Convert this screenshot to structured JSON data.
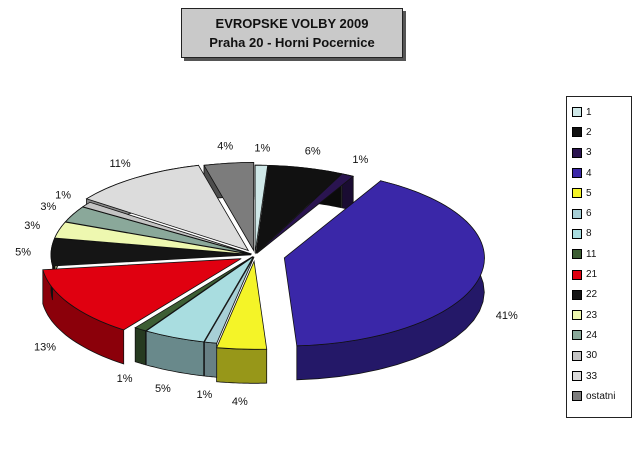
{
  "chart_data": {
    "type": "pie",
    "title": "EVROPSKE VOLBY 2009",
    "subtitle": "Praha 20 - Horni Pocernice",
    "slices": [
      {
        "label": "1",
        "value": 1,
        "pct_label": "1%",
        "color": "#cfe8e8"
      },
      {
        "label": "2",
        "value": 6,
        "pct_label": "6%",
        "color": "#111111"
      },
      {
        "label": "3",
        "value": 1,
        "pct_label": "1%",
        "color": "#2a1450"
      },
      {
        "label": "4",
        "value": 41,
        "pct_label": "41%",
        "color": "#3a27a8"
      },
      {
        "label": "5",
        "value": 4,
        "pct_label": "4%",
        "color": "#f4f428"
      },
      {
        "label": "6",
        "value": 1,
        "pct_label": "1%",
        "color": "#a7cfd6"
      },
      {
        "label": "8",
        "value": 5,
        "pct_label": "5%",
        "color": "#a9dde0"
      },
      {
        "label": "11",
        "value": 1,
        "pct_label": "1%",
        "color": "#3d5e34"
      },
      {
        "label": "21",
        "value": 13,
        "pct_label": "13%",
        "color": "#e00010"
      },
      {
        "label": "22",
        "value": 5,
        "pct_label": "5%",
        "color": "#151515"
      },
      {
        "label": "23",
        "value": 3,
        "pct_label": "3%",
        "color": "#eef8b0"
      },
      {
        "label": "24",
        "value": 3,
        "pct_label": "3%",
        "color": "#8aa89a"
      },
      {
        "label": "30",
        "value": 1,
        "pct_label": "1%",
        "color": "#c4c4c4"
      },
      {
        "label": "33",
        "value": 11,
        "pct_label": "11%",
        "color": "#dcdcdc"
      },
      {
        "label": "ostatni",
        "value": 4,
        "pct_label": "4%",
        "color": "#7c7c7c"
      }
    ],
    "legend_position": "right"
  },
  "legend_items": [
    "1",
    "2",
    "3",
    "4",
    "5",
    "6",
    "8",
    "11",
    "21",
    "22",
    "23",
    "24",
    "30",
    "33",
    "ostatni"
  ]
}
